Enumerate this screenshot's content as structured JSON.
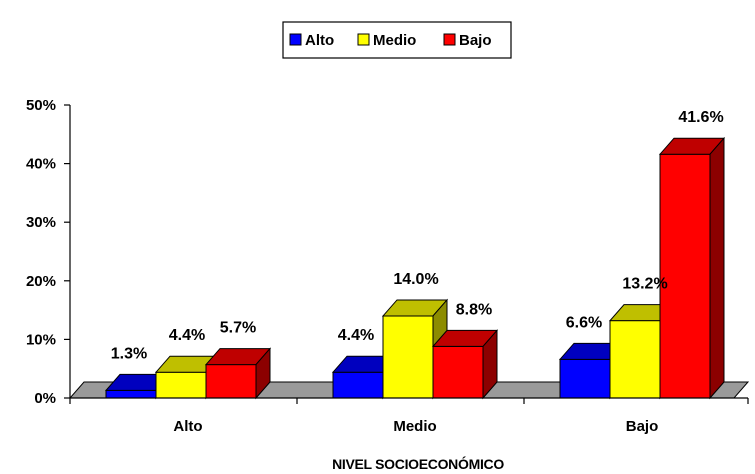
{
  "chart_data": {
    "type": "bar",
    "categories": [
      "Alto",
      "Medio",
      "Bajo"
    ],
    "series": [
      {
        "name": "Alto",
        "color": "#0000FF",
        "values": [
          1.3,
          4.4,
          6.6
        ]
      },
      {
        "name": "Medio",
        "color": "#FFFF00",
        "values": [
          4.4,
          14.0,
          13.2
        ]
      },
      {
        "name": "Bajo",
        "color": "#FF0000",
        "values": [
          5.7,
          8.8,
          41.6
        ]
      }
    ],
    "data_labels": [
      [
        "1.3%",
        "4.4%",
        "5.7%"
      ],
      [
        "4.4%",
        "14.0%",
        "8.8%"
      ],
      [
        "6.6%",
        "13.2%",
        "41.6%"
      ]
    ],
    "title": "",
    "xlabel": "NIVEL SOCIOECONÓMICO",
    "ylabel": "",
    "ylim": [
      0,
      50
    ],
    "yticks": [
      "0%",
      "10%",
      "20%",
      "30%",
      "40%",
      "50%"
    ],
    "grid": false,
    "legend_position": "top-center",
    "style": "3d-bar"
  }
}
